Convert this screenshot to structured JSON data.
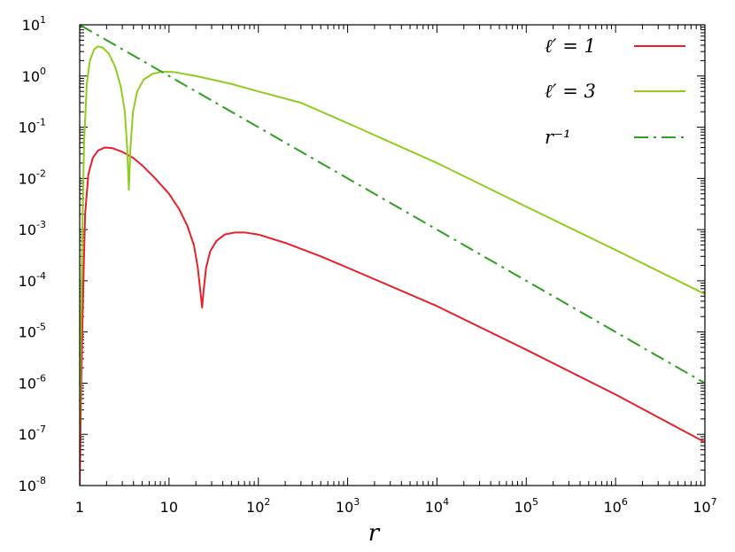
{
  "chart_data": {
    "type": "line",
    "xlabel": "r",
    "ylabel": "",
    "title": "",
    "x_scale": "log",
    "y_scale": "log",
    "xlim": [
      1,
      10000000
    ],
    "ylim": [
      1e-08,
      10
    ],
    "x_ticks": [
      {
        "value": 1,
        "base": "1",
        "exp": ""
      },
      {
        "value": 10,
        "base": "10",
        "exp": ""
      },
      {
        "value": 100,
        "base": "10",
        "exp": "2"
      },
      {
        "value": 1000,
        "base": "10",
        "exp": "3"
      },
      {
        "value": 10000,
        "base": "10",
        "exp": "4"
      },
      {
        "value": 100000,
        "base": "10",
        "exp": "5"
      },
      {
        "value": 1000000,
        "base": "10",
        "exp": "6"
      },
      {
        "value": 10000000,
        "base": "10",
        "exp": "7"
      }
    ],
    "y_ticks": [
      {
        "value": 1e-08,
        "base": "10",
        "exp": "-8"
      },
      {
        "value": 1e-07,
        "base": "10",
        "exp": "-7"
      },
      {
        "value": 1e-06,
        "base": "10",
        "exp": "-6"
      },
      {
        "value": 1e-05,
        "base": "10",
        "exp": "-5"
      },
      {
        "value": 0.0001,
        "base": "10",
        "exp": "-4"
      },
      {
        "value": 0.001,
        "base": "10",
        "exp": "-3"
      },
      {
        "value": 0.01,
        "base": "10",
        "exp": "-2"
      },
      {
        "value": 0.1,
        "base": "10",
        "exp": "-1"
      },
      {
        "value": 1,
        "base": "10",
        "exp": "0"
      },
      {
        "value": 10,
        "base": "10",
        "exp": "1"
      }
    ],
    "legend_position": "top-right",
    "series": [
      {
        "name": "ℓ′ = 1",
        "color": "#e8202a",
        "style": "solid",
        "points": [
          [
            1.0,
            1e-08
          ],
          [
            1.04,
            1e-06
          ],
          [
            1.1,
            0.0001
          ],
          [
            1.15,
            0.002
          ],
          [
            1.25,
            0.012
          ],
          [
            1.4,
            0.025
          ],
          [
            1.6,
            0.035
          ],
          [
            1.9,
            0.04
          ],
          [
            2.3,
            0.039
          ],
          [
            3,
            0.033
          ],
          [
            4,
            0.025
          ],
          [
            5,
            0.018
          ],
          [
            7,
            0.01
          ],
          [
            10,
            0.005
          ],
          [
            13,
            0.0025
          ],
          [
            16,
            0.0012
          ],
          [
            19,
            0.0005
          ],
          [
            21,
            0.00018
          ],
          [
            22.5,
            6e-05
          ],
          [
            23.5,
            3e-05
          ],
          [
            24.3,
            6e-05
          ],
          [
            26,
            0.00018
          ],
          [
            29,
            0.00038
          ],
          [
            34,
            0.0006
          ],
          [
            42,
            0.0008
          ],
          [
            55,
            0.00088
          ],
          [
            70,
            0.00088
          ],
          [
            100,
            0.0008
          ],
          [
            200,
            0.00055
          ],
          [
            500,
            0.0003
          ],
          [
            1000,
            0.00018
          ],
          [
            10000,
            3.2e-05
          ],
          [
            100000,
            4.5e-06
          ],
          [
            1000000,
            6e-07
          ],
          [
            10000000,
            7e-08
          ]
        ]
      },
      {
        "name": "ℓ′ = 3",
        "color": "#8fcc1e",
        "style": "solid",
        "points": [
          [
            1.0,
            1e-07
          ],
          [
            1.03,
            1e-05
          ],
          [
            1.07,
            0.001
          ],
          [
            1.12,
            0.05
          ],
          [
            1.2,
            0.7
          ],
          [
            1.3,
            2.0
          ],
          [
            1.45,
            3.3
          ],
          [
            1.6,
            3.8
          ],
          [
            1.8,
            3.6
          ],
          [
            2.1,
            2.8
          ],
          [
            2.5,
            1.5
          ],
          [
            2.9,
            0.6
          ],
          [
            3.2,
            0.2
          ],
          [
            3.4,
            0.04
          ],
          [
            3.55,
            0.006
          ],
          [
            3.7,
            0.04
          ],
          [
            3.95,
            0.2
          ],
          [
            4.4,
            0.5
          ],
          [
            5.2,
            0.85
          ],
          [
            6.5,
            1.1
          ],
          [
            8.5,
            1.22
          ],
          [
            11,
            1.2
          ],
          [
            20,
            1.0
          ],
          [
            50,
            0.7
          ],
          [
            100,
            0.5
          ],
          [
            300,
            0.3
          ],
          [
            1000,
            0.12
          ],
          [
            10000,
            0.02
          ],
          [
            100000,
            0.0028
          ],
          [
            1000000,
            0.0004
          ],
          [
            10000000,
            5.5e-05
          ]
        ]
      },
      {
        "name": "r⁻¹",
        "color": "#2e9e1e",
        "style": "dash-dot",
        "points": [
          [
            1,
            10
          ],
          [
            10000000,
            1e-06
          ]
        ]
      }
    ]
  }
}
